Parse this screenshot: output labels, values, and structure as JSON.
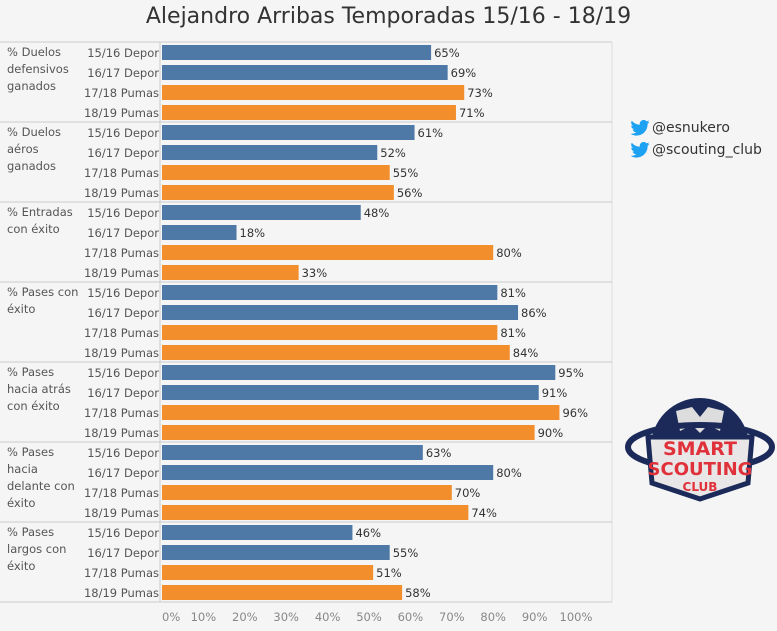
{
  "chart_data": {
    "type": "bar",
    "orientation": "horizontal",
    "title": "Alejandro Arribas Temporadas 15/16 - 18/19",
    "seasons": [
      "15/16 Depor",
      "16/17 Depor",
      "17/18 Pumas",
      "18/19 Pumas"
    ],
    "season_colors": [
      "#4e79a7",
      "#4e79a7",
      "#f28e2b",
      "#f28e2b"
    ],
    "groups": [
      {
        "label": [
          "% Duelos",
          "defensivos",
          "ganados"
        ],
        "values": [
          65,
          69,
          73,
          71
        ]
      },
      {
        "label": [
          "% Duelos",
          "aéros",
          "ganados"
        ],
        "values": [
          61,
          52,
          55,
          56
        ]
      },
      {
        "label": [
          "% Entradas",
          "con éxito"
        ],
        "values": [
          48,
          18,
          80,
          33
        ]
      },
      {
        "label": [
          "% Pases con",
          "éxito"
        ],
        "values": [
          81,
          86,
          81,
          84
        ]
      },
      {
        "label": [
          "% Pases",
          "hacia atrás",
          "con éxito"
        ],
        "values": [
          95,
          91,
          96,
          90
        ]
      },
      {
        "label": [
          "% Pases",
          "hacia",
          "delante con",
          "éxito"
        ],
        "values": [
          63,
          80,
          70,
          74
        ]
      },
      {
        "label": [
          "% Pases",
          "largos con",
          "éxito"
        ],
        "values": [
          46,
          55,
          51,
          58
        ]
      }
    ],
    "xlim": [
      0,
      100
    ],
    "xticks": [
      "0%",
      "10%",
      "20%",
      "30%",
      "40%",
      "50%",
      "60%",
      "70%",
      "80%",
      "90%",
      "100%"
    ],
    "value_suffix": "%",
    "grid": false
  },
  "twitter": [
    {
      "icon": "twitter-icon",
      "handle": "@esnukero",
      "color": "#1da1f2"
    },
    {
      "icon": "twitter-icon",
      "handle": "@scouting_club",
      "color": "#1da1f2"
    }
  ],
  "logo": {
    "lines": [
      "SMART",
      "SCOUTING",
      "CLUB"
    ],
    "colors": {
      "navy": "#1c2a5a",
      "red": "#e0313a"
    }
  }
}
